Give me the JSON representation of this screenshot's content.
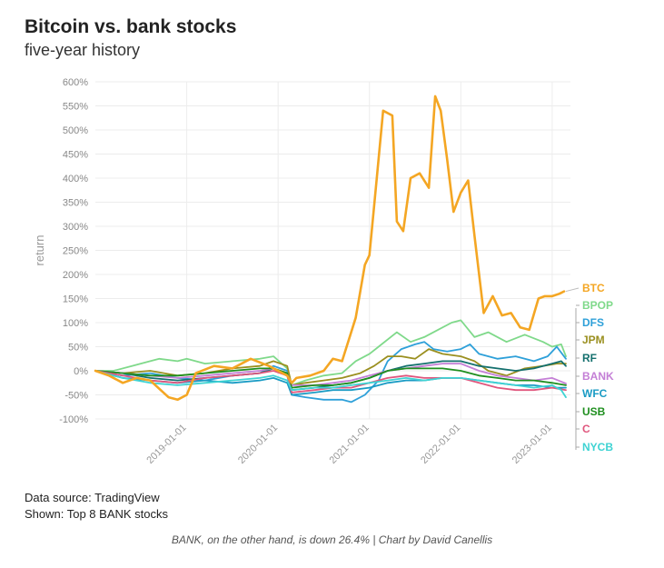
{
  "header": {
    "title": "Bitcoin vs. bank stocks",
    "subtitle": "five-year history"
  },
  "footer": {
    "source": "Data source: TradingView",
    "shown": "Shown: Top 8 BANK stocks",
    "caption": "BANK, on the other hand, is down 26.4% | Chart by David Canellis"
  },
  "chart_data": {
    "type": "line",
    "title": "Bitcoin vs. bank stocks",
    "subtitle": "five-year history",
    "xlabel": "",
    "ylabel": "return",
    "xlim": [
      2018.0,
      2023.2
    ],
    "ylim": [
      -100,
      600
    ],
    "y_ticks": [
      -100,
      -50,
      0,
      50,
      100,
      150,
      200,
      250,
      300,
      350,
      400,
      450,
      500,
      550,
      600
    ],
    "y_tick_suffix": "%",
    "x_ticks": [
      {
        "value": 2019.0,
        "label": "2019-01-01"
      },
      {
        "value": 2020.0,
        "label": "2020-01-01"
      },
      {
        "value": 2021.0,
        "label": "2021-01-01"
      },
      {
        "value": 2022.0,
        "label": "2022-01-01"
      },
      {
        "value": 2023.0,
        "label": "2023-01-01"
      }
    ],
    "grid": true,
    "legend": "right",
    "series": [
      {
        "name": "BTC",
        "color": "#f4a623",
        "x": [
          2018.0,
          2018.15,
          2018.3,
          2018.45,
          2018.6,
          2018.8,
          2018.9,
          2019.0,
          2019.1,
          2019.3,
          2019.5,
          2019.7,
          2019.9,
          2020.1,
          2020.15,
          2020.2,
          2020.35,
          2020.5,
          2020.6,
          2020.7,
          2020.85,
          2020.95,
          2021.0,
          2021.08,
          2021.15,
          2021.25,
          2021.3,
          2021.37,
          2021.45,
          2021.55,
          2021.65,
          2021.72,
          2021.78,
          2021.85,
          2021.92,
          2022.0,
          2022.08,
          2022.15,
          2022.25,
          2022.35,
          2022.45,
          2022.55,
          2022.65,
          2022.75,
          2022.85,
          2022.92,
          2023.0,
          2023.08,
          2023.13
        ],
        "values": [
          0,
          -10,
          -25,
          -15,
          -20,
          -55,
          -60,
          -50,
          -5,
          10,
          5,
          25,
          10,
          -10,
          -25,
          -15,
          -10,
          0,
          25,
          20,
          110,
          220,
          240,
          400,
          540,
          530,
          310,
          290,
          400,
          410,
          380,
          570,
          540,
          440,
          330,
          370,
          395,
          280,
          120,
          155,
          115,
          120,
          90,
          85,
          150,
          155,
          155,
          160,
          165
        ]
      },
      {
        "name": "BPOP",
        "color": "#7fd98a",
        "x": [
          2018.0,
          2018.2,
          2018.4,
          2018.6,
          2018.7,
          2018.9,
          2019.0,
          2019.2,
          2019.5,
          2019.8,
          2019.95,
          2020.1,
          2020.15,
          2020.3,
          2020.5,
          2020.7,
          2020.85,
          2021.0,
          2021.1,
          2021.3,
          2021.45,
          2021.6,
          2021.75,
          2021.9,
          2022.0,
          2022.15,
          2022.3,
          2022.5,
          2022.7,
          2022.9,
          2023.0,
          2023.1,
          2023.15
        ],
        "values": [
          0,
          0,
          10,
          20,
          25,
          20,
          25,
          15,
          20,
          25,
          30,
          5,
          -30,
          -20,
          -10,
          -5,
          20,
          35,
          50,
          80,
          60,
          70,
          85,
          100,
          105,
          70,
          80,
          60,
          75,
          60,
          50,
          55,
          30
        ]
      },
      {
        "name": "DFS",
        "color": "#2ea0d9",
        "x": [
          2018.0,
          2018.3,
          2018.6,
          2018.9,
          2019.2,
          2019.5,
          2019.8,
          2019.95,
          2020.1,
          2020.15,
          2020.3,
          2020.5,
          2020.7,
          2020.8,
          2020.95,
          2021.1,
          2021.2,
          2021.35,
          2021.5,
          2021.6,
          2021.7,
          2021.85,
          2022.0,
          2022.1,
          2022.2,
          2022.4,
          2022.6,
          2022.8,
          2022.95,
          2023.05,
          2023.15
        ],
        "values": [
          0,
          -10,
          -5,
          -15,
          -20,
          -10,
          -5,
          10,
          0,
          -50,
          -55,
          -60,
          -60,
          -65,
          -50,
          -20,
          20,
          45,
          55,
          60,
          45,
          40,
          45,
          55,
          35,
          25,
          30,
          20,
          30,
          50,
          25
        ]
      },
      {
        "name": "JPM",
        "color": "#9a8f1f",
        "x": [
          2018.0,
          2018.3,
          2018.6,
          2018.9,
          2019.2,
          2019.5,
          2019.8,
          2019.95,
          2020.1,
          2020.15,
          2020.3,
          2020.5,
          2020.7,
          2020.9,
          2021.05,
          2021.2,
          2021.35,
          2021.5,
          2021.65,
          2021.8,
          2022.0,
          2022.15,
          2022.3,
          2022.5,
          2022.7,
          2022.9,
          2023.05,
          2023.15
        ],
        "values": [
          0,
          -5,
          0,
          -10,
          -5,
          5,
          10,
          20,
          10,
          -30,
          -25,
          -20,
          -15,
          -5,
          10,
          30,
          30,
          25,
          45,
          35,
          30,
          20,
          0,
          -10,
          5,
          10,
          15,
          15
        ]
      },
      {
        "name": "RF",
        "color": "#14706e",
        "x": [
          2018.0,
          2018.3,
          2018.6,
          2018.9,
          2019.2,
          2019.5,
          2019.8,
          2019.95,
          2020.1,
          2020.15,
          2020.4,
          2020.6,
          2020.8,
          2021.0,
          2021.2,
          2021.4,
          2021.6,
          2021.8,
          2022.0,
          2022.2,
          2022.4,
          2022.6,
          2022.8,
          2023.0,
          2023.1,
          2023.15
        ],
        "values": [
          0,
          -5,
          -15,
          -20,
          -15,
          -10,
          -5,
          5,
          -10,
          -40,
          -35,
          -30,
          -25,
          -15,
          0,
          10,
          15,
          20,
          20,
          10,
          5,
          0,
          5,
          15,
          20,
          10
        ]
      },
      {
        "name": "BANK",
        "color": "#c47fd6",
        "x": [
          2018.0,
          2018.3,
          2018.6,
          2018.9,
          2019.2,
          2019.5,
          2019.8,
          2019.95,
          2020.1,
          2020.15,
          2020.4,
          2020.6,
          2020.8,
          2021.0,
          2021.2,
          2021.4,
          2021.6,
          2021.8,
          2022.0,
          2022.2,
          2022.4,
          2022.6,
          2022.8,
          2023.0,
          2023.15
        ],
        "values": [
          0,
          -5,
          -10,
          -15,
          -10,
          -5,
          0,
          5,
          -5,
          -30,
          -30,
          -25,
          -20,
          -10,
          0,
          5,
          10,
          15,
          15,
          0,
          -10,
          -15,
          -20,
          -15,
          -26.4
        ]
      },
      {
        "name": "WFC",
        "color": "#1a9bc4",
        "x": [
          2018.0,
          2018.3,
          2018.6,
          2018.9,
          2019.2,
          2019.5,
          2019.8,
          2019.95,
          2020.1,
          2020.15,
          2020.4,
          2020.6,
          2020.8,
          2021.0,
          2021.2,
          2021.4,
          2021.6,
          2021.8,
          2022.0,
          2022.2,
          2022.4,
          2022.6,
          2022.8,
          2023.0,
          2023.15
        ],
        "values": [
          0,
          -15,
          -20,
          -25,
          -20,
          -25,
          -20,
          -15,
          -25,
          -50,
          -45,
          -40,
          -40,
          -35,
          -25,
          -20,
          -20,
          -15,
          -15,
          -20,
          -25,
          -30,
          -30,
          -35,
          -35
        ]
      },
      {
        "name": "USB",
        "color": "#1f8f1f",
        "x": [
          2018.0,
          2018.3,
          2018.6,
          2018.9,
          2019.2,
          2019.5,
          2019.8,
          2019.95,
          2020.1,
          2020.15,
          2020.4,
          2020.6,
          2020.8,
          2021.0,
          2021.2,
          2021.4,
          2021.6,
          2021.8,
          2022.0,
          2022.2,
          2022.4,
          2022.6,
          2022.8,
          2023.0,
          2023.15
        ],
        "values": [
          0,
          -5,
          -10,
          -10,
          -5,
          0,
          5,
          5,
          -5,
          -35,
          -30,
          -30,
          -25,
          -15,
          0,
          5,
          5,
          5,
          0,
          -10,
          -15,
          -20,
          -20,
          -25,
          -30
        ]
      },
      {
        "name": "C",
        "color": "#e0567d",
        "x": [
          2018.0,
          2018.3,
          2018.6,
          2018.9,
          2019.2,
          2019.5,
          2019.8,
          2019.95,
          2020.1,
          2020.15,
          2020.4,
          2020.6,
          2020.8,
          2021.0,
          2021.2,
          2021.4,
          2021.6,
          2021.8,
          2022.0,
          2022.2,
          2022.4,
          2022.6,
          2022.8,
          2023.0,
          2023.15
        ],
        "values": [
          0,
          -10,
          -20,
          -25,
          -15,
          -10,
          -5,
          0,
          -10,
          -45,
          -40,
          -35,
          -35,
          -25,
          -15,
          -10,
          -15,
          -15,
          -15,
          -25,
          -35,
          -40,
          -40,
          -35,
          -40
        ]
      },
      {
        "name": "NYCB",
        "color": "#3fd3d3",
        "x": [
          2018.0,
          2018.3,
          2018.6,
          2018.9,
          2019.2,
          2019.5,
          2019.8,
          2019.95,
          2020.1,
          2020.15,
          2020.4,
          2020.6,
          2020.8,
          2021.0,
          2021.2,
          2021.4,
          2021.6,
          2021.8,
          2022.0,
          2022.2,
          2022.4,
          2022.6,
          2022.8,
          2023.0,
          2023.1,
          2023.15
        ],
        "values": [
          0,
          -15,
          -25,
          -30,
          -25,
          -20,
          -15,
          -10,
          -20,
          -40,
          -35,
          -35,
          -30,
          -25,
          -20,
          -15,
          -20,
          -15,
          -15,
          -20,
          -25,
          -30,
          -35,
          -30,
          -40,
          -55
        ]
      }
    ]
  }
}
